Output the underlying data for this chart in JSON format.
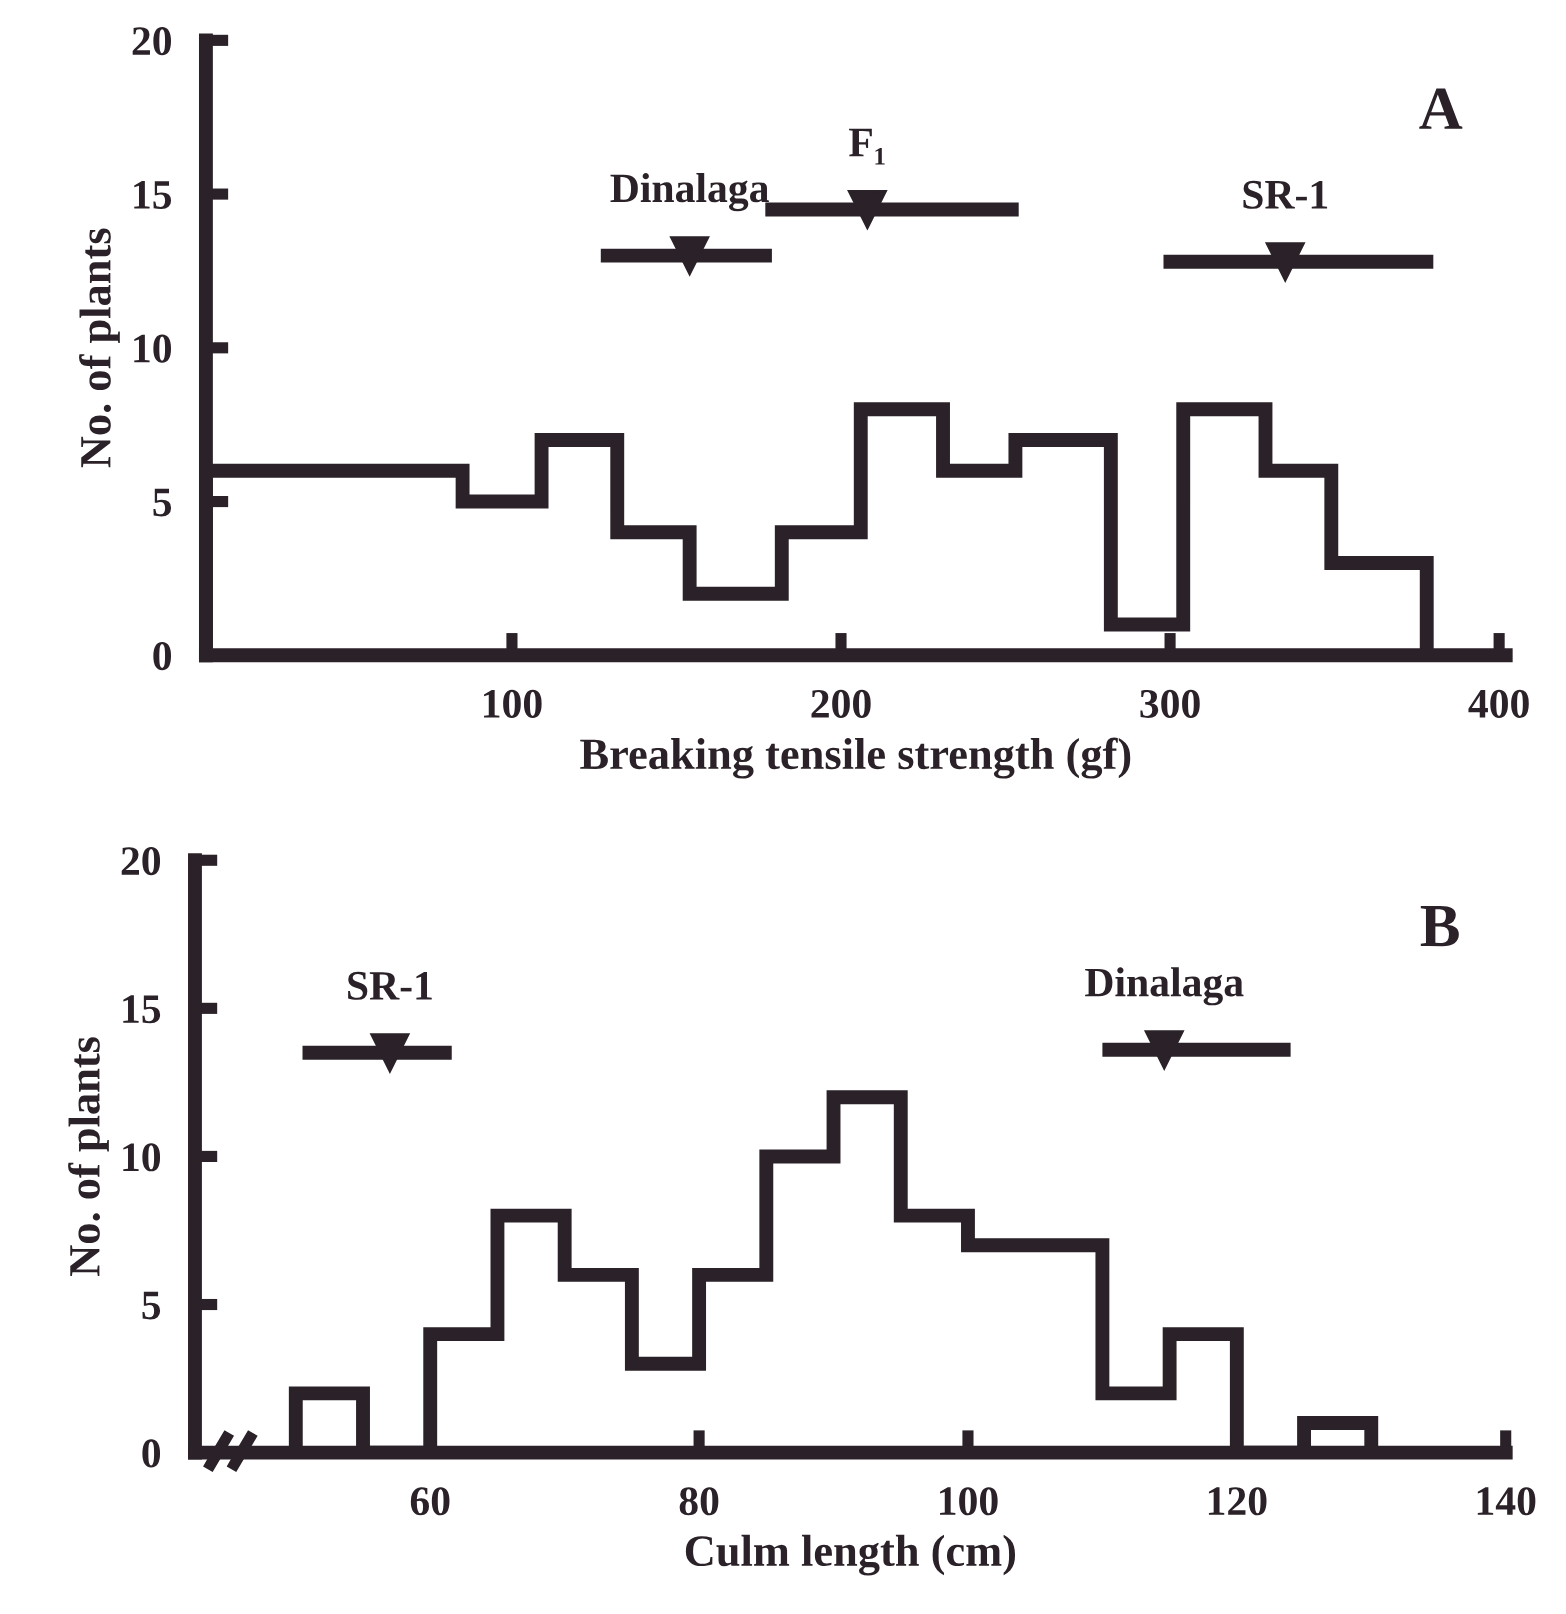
{
  "chart_data": [
    {
      "type": "histogram",
      "xlabel": "Breaking tensile strength (gf)",
      "ylabel": "No. of plants",
      "annotations": [
        "A"
      ],
      "xlim": [
        7,
        402
      ],
      "ylim": [
        0,
        20
      ],
      "xticks": [
        100,
        200,
        300,
        400
      ],
      "yticks": [
        0,
        5,
        10,
        15,
        20
      ],
      "grid": false,
      "legend": false,
      "marker": "triangle",
      "series": [
        {
          "color": "#2a2228",
          "bins": [
            7,
            85,
            109,
            132,
            154,
            182,
            206,
            231,
            253,
            282,
            304,
            329,
            349,
            378
          ],
          "values": [
            6,
            5,
            7,
            4,
            2,
            4,
            8,
            6,
            7,
            1,
            8,
            6,
            3
          ]
        },
        {
          "type": "scatter",
          "name": "Dinalaga",
          "color": "#2a2228",
          "x": [
            154
          ],
          "values": [
            13
          ],
          "xerrors": [
            [
              127,
              179
            ]
          ]
        },
        {
          "type": "scatter",
          "name": "F₁",
          "color": "#2a2228",
          "x": [
            208
          ],
          "values": [
            14.5
          ],
          "xerrors": [
            [
              177,
              254
            ]
          ]
        },
        {
          "type": "scatter",
          "name": "SR-1",
          "color": "#2a2228",
          "x": [
            335
          ],
          "values": [
            12.8
          ],
          "xerrors": [
            [
              298,
              380
            ]
          ]
        }
      ]
    },
    {
      "type": "histogram",
      "xlabel": "Culm length (cm)",
      "ylabel": "No. of plants",
      "annotations": [
        "B"
      ],
      "xlim": [
        42.5,
        140
      ],
      "ylim": [
        0,
        20
      ],
      "xticks": [
        60,
        80,
        100,
        120,
        140
      ],
      "yticks": [
        0,
        5,
        10,
        15,
        20
      ],
      "grid": false,
      "legend": false,
      "marker": "triangle",
      "series": [
        {
          "color": "#2a2228",
          "bins": [
            50,
            55,
            60,
            65,
            70,
            75,
            80,
            85,
            90,
            95,
            100,
            105,
            110,
            115,
            120,
            125,
            130
          ],
          "values": [
            2,
            0,
            4,
            8,
            6,
            3,
            6,
            10,
            12,
            8,
            7,
            7,
            2,
            4,
            0,
            1
          ]
        },
        {
          "type": "scatter",
          "name": "SR-1",
          "color": "#2a2228",
          "x": [
            57
          ],
          "values": [
            13.5
          ],
          "xerrors": [
            [
              50.5,
              61.6
            ]
          ]
        },
        {
          "type": "scatter",
          "name": "Dinalaga",
          "color": "#2a2228",
          "x": [
            114.6
          ],
          "values": [
            13.6
          ],
          "xerrors": [
            [
              110,
              124
            ]
          ]
        }
      ]
    }
  ]
}
